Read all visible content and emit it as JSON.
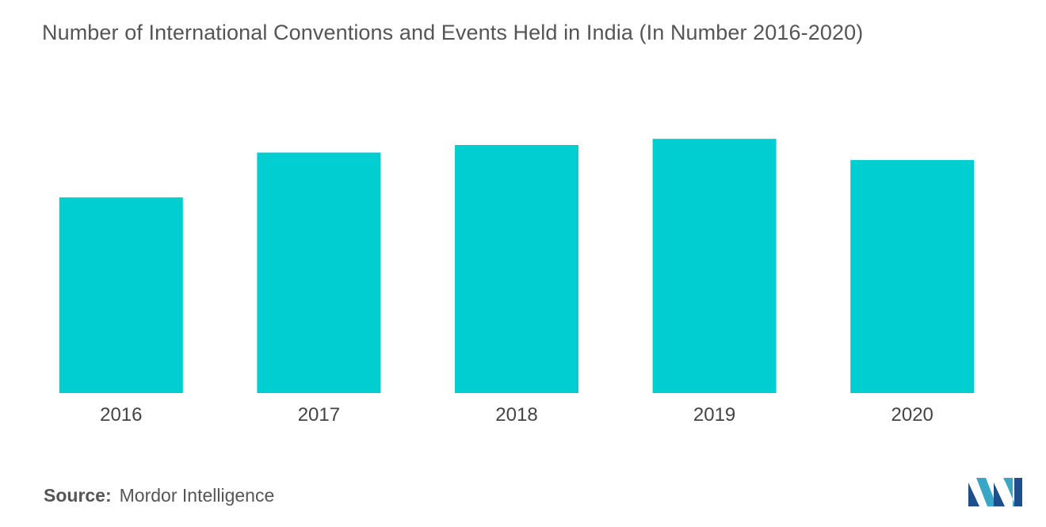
{
  "title": "Number of International Conventions and Events Held in India (In Number 2016-2020)",
  "source": {
    "label": "Source:",
    "value": "Mordor Intelligence"
  },
  "logo": {
    "icon": "mordor-intelligence-logo-icon",
    "colors": [
      "#1f4e8c",
      "#3aa6c7"
    ]
  },
  "colors": {
    "bar": "#00ced1",
    "axis_text": "#444444",
    "title_text": "#555555"
  },
  "chart_data": {
    "type": "bar",
    "title": "Number of International Conventions and Events Held in India (In Number 2016-2020)",
    "xlabel": "",
    "ylabel": "",
    "categories": [
      "2016",
      "2017",
      "2018",
      "2019",
      "2020"
    ],
    "values": [
      157,
      193,
      199,
      204,
      187
    ],
    "ylim": [
      0,
      220
    ],
    "grid": false,
    "legend": "none"
  }
}
